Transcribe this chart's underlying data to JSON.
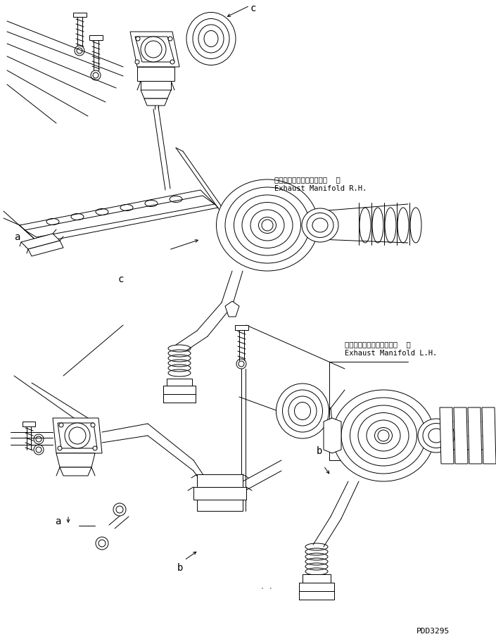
{
  "bg_color": "#ffffff",
  "line_color": "#000000",
  "fig_width": 7.05,
  "fig_height": 9.08,
  "dpi": 100,
  "text_rh_jp": "エキゾーストマニホールド  右",
  "text_rh_en": "Exhaust Manifold R.H.",
  "text_lh_jp": "エキゾーストマニホールド  左",
  "text_lh_en": "Exhaust Manifold L.H.",
  "watermark": "PDD3295",
  "lw": 0.7
}
